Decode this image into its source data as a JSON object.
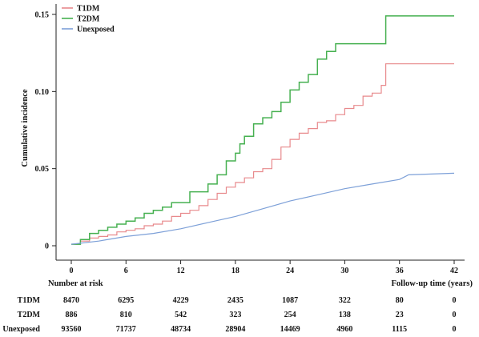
{
  "chart_data": {
    "type": "line",
    "title": "",
    "xlabel": "Follow-up time (years)",
    "ylabel": "Cumulative incidence",
    "xlim": [
      0,
      42
    ],
    "ylim": [
      0,
      0.15
    ],
    "x_ticks": [
      0,
      6,
      12,
      18,
      24,
      30,
      36,
      42
    ],
    "y_ticks": [
      0,
      0.05,
      0.1,
      0.15
    ],
    "y_tick_labels": [
      "0",
      "0.05",
      "0.10",
      "0.15"
    ],
    "grid": false,
    "legend_position": "top-left",
    "series": [
      {
        "name": "T1DM",
        "color": "#e8898c",
        "step": true,
        "points": [
          [
            0,
            0.001
          ],
          [
            1,
            0.003
          ],
          [
            2,
            0.005
          ],
          [
            3,
            0.006
          ],
          [
            4,
            0.007
          ],
          [
            5,
            0.009
          ],
          [
            6,
            0.01
          ],
          [
            7,
            0.011
          ],
          [
            8,
            0.013
          ],
          [
            9,
            0.014
          ],
          [
            10,
            0.016
          ],
          [
            11,
            0.019
          ],
          [
            12,
            0.021
          ],
          [
            13,
            0.023
          ],
          [
            14,
            0.026
          ],
          [
            15,
            0.03
          ],
          [
            16,
            0.034
          ],
          [
            17,
            0.038
          ],
          [
            18,
            0.041
          ],
          [
            19,
            0.044
          ],
          [
            20,
            0.048
          ],
          [
            21,
            0.05
          ],
          [
            22,
            0.056
          ],
          [
            23,
            0.064
          ],
          [
            24,
            0.069
          ],
          [
            25,
            0.073
          ],
          [
            26,
            0.076
          ],
          [
            27,
            0.08
          ],
          [
            28,
            0.081
          ],
          [
            29,
            0.085
          ],
          [
            30,
            0.089
          ],
          [
            31,
            0.091
          ],
          [
            32,
            0.097
          ],
          [
            33,
            0.099
          ],
          [
            34,
            0.104
          ],
          [
            34.5,
            0.118
          ],
          [
            42,
            0.118
          ]
        ]
      },
      {
        "name": "T2DM",
        "color": "#46b050",
        "step": true,
        "points": [
          [
            0,
            0.001
          ],
          [
            1,
            0.004
          ],
          [
            2,
            0.008
          ],
          [
            3,
            0.01
          ],
          [
            4,
            0.012
          ],
          [
            5,
            0.014
          ],
          [
            6,
            0.016
          ],
          [
            7,
            0.018
          ],
          [
            8,
            0.021
          ],
          [
            9,
            0.023
          ],
          [
            10,
            0.025
          ],
          [
            11,
            0.028
          ],
          [
            12,
            0.028
          ],
          [
            13,
            0.035
          ],
          [
            14,
            0.035
          ],
          [
            15,
            0.04
          ],
          [
            16,
            0.046
          ],
          [
            17,
            0.055
          ],
          [
            18,
            0.06
          ],
          [
            18.5,
            0.066
          ],
          [
            19,
            0.071
          ],
          [
            20,
            0.079
          ],
          [
            21,
            0.083
          ],
          [
            22,
            0.087
          ],
          [
            23,
            0.093
          ],
          [
            24,
            0.101
          ],
          [
            25,
            0.106
          ],
          [
            26,
            0.111
          ],
          [
            27,
            0.121
          ],
          [
            28,
            0.126
          ],
          [
            29,
            0.131
          ],
          [
            34,
            0.131
          ],
          [
            34.5,
            0.149
          ],
          [
            42,
            0.149
          ]
        ]
      },
      {
        "name": "Unexposed",
        "color": "#7da0d8",
        "step": false,
        "points": [
          [
            0,
            0.001
          ],
          [
            3,
            0.003
          ],
          [
            6,
            0.006
          ],
          [
            9,
            0.008
          ],
          [
            12,
            0.011
          ],
          [
            15,
            0.015
          ],
          [
            18,
            0.019
          ],
          [
            21,
            0.024
          ],
          [
            24,
            0.029
          ],
          [
            27,
            0.033
          ],
          [
            30,
            0.037
          ],
          [
            33,
            0.04
          ],
          [
            36,
            0.043
          ],
          [
            37,
            0.046
          ],
          [
            42,
            0.047
          ]
        ]
      }
    ]
  },
  "risk_table": {
    "title": "Number at risk",
    "rows": [
      {
        "label": "T1DM",
        "values": [
          "8470",
          "6295",
          "4229",
          "2435",
          "1087",
          "322",
          "80",
          "0"
        ]
      },
      {
        "label": "T2DM",
        "values": [
          "886",
          "810",
          "542",
          "323",
          "254",
          "138",
          "23",
          "0"
        ]
      },
      {
        "label": "Unexposed",
        "values": [
          "93560",
          "71737",
          "48734",
          "28904",
          "14469",
          "4960",
          "1115",
          "0"
        ]
      }
    ]
  }
}
